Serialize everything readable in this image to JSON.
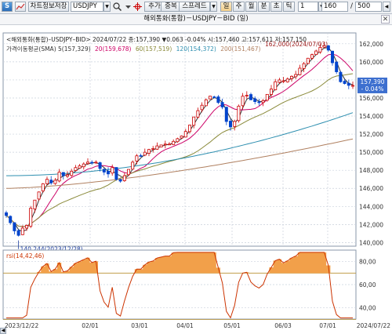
{
  "toolbar": {
    "logo_label": "S",
    "save_chart_label": "차트정보저장",
    "symbol_value": "USDJPY",
    "add_label": "추가",
    "overlay_label": "중복",
    "spread_label": "스프레드",
    "period_day": "일",
    "period_week": "주",
    "period_month": "월",
    "period_minute": "분",
    "period_tick": "초",
    "period_tick2": "틱",
    "multiplier_value": "1",
    "count_value": "160",
    "slash": "/",
    "total_value": "500"
  },
  "header": {
    "title": "해외통화(통합)－USDJPY－BID (일)"
  },
  "price_panel": {
    "info_line": "<해외통화(통합)–USDJPY–BID> 2024/07/22 종:157,390 ▼0.063 -0.04% 시:157,460 고:157,611 저:157,150",
    "ma_line_label": "가격이동평균(SMA) 5(157,329)",
    "ma_items": [
      {
        "text": "20(159,678)",
        "color": "#cc0066"
      },
      {
        "text": "60(157,519)",
        "color": "#8a8a3a"
      },
      {
        "text": "120(154,372)",
        "color": "#2e8fb0"
      },
      {
        "text": "200(151,467)",
        "color": "#b08060"
      }
    ],
    "high_annotation": "162,000(2024/07/03)",
    "low_annotation": "140,244(2023/12/28)",
    "last_price": "157,390",
    "last_change": "- 0.04%"
  },
  "rsi_panel": {
    "label": "rsi(14,42,46)"
  },
  "colors": {
    "up": "#cc0000",
    "down": "#0044cc",
    "ma5": "#333333",
    "ma20": "#cc0066",
    "ma60": "#8a8a3a",
    "ma120": "#2e8fb0",
    "ma200": "#b08060",
    "rsi": "#cc3300",
    "rsi_fill": "#f2a04a"
  },
  "chart_data": {
    "type": "candlestick",
    "price_axis": {
      "min": 140,
      "max": 162,
      "ticks": [
        140,
        142,
        144,
        146,
        148,
        150,
        152,
        154,
        156,
        158,
        160,
        162
      ]
    },
    "rsi_axis": {
      "min": 30,
      "max": 80,
      "ticks": [
        40,
        60,
        80
      ],
      "overbought": 70,
      "oversold": 30
    },
    "x_tick_labels": [
      "2023/12/22",
      "02/01",
      "03/01",
      "04/01",
      "05/01",
      "06/03",
      "07/01",
      "2024/07/22"
    ],
    "close_path": [
      143.0,
      142.2,
      141.3,
      140.8,
      141.6,
      141.9,
      143.8,
      144.7,
      145.6,
      146.5,
      147.0,
      146.6,
      146.9,
      147.8,
      147.4,
      147.5,
      147.9,
      148.3,
      148.5,
      148.7,
      148.9,
      148.8,
      148.9,
      148.2,
      147.8,
      147.6,
      148.3,
      147.0,
      146.8,
      147.4,
      148.1,
      148.9,
      149.6,
      149.6,
      150.0,
      150.3,
      150.4,
      150.7,
      150.8,
      150.9,
      150.9,
      151.2,
      151.5,
      151.8,
      152.3,
      153.0,
      153.9,
      154.6,
      155.2,
      155.8,
      156.2,
      156.1,
      155.5,
      155.0,
      153.4,
      152.8,
      153.4,
      155.1,
      156.2,
      156.3,
      155.8,
      155.6,
      155.5,
      155.7,
      156.4,
      157.0,
      157.8,
      158.0,
      157.9,
      158.1,
      158.4,
      158.6,
      159.3,
      159.8,
      160.4,
      160.8,
      161.2,
      161.6,
      161.8,
      161.3,
      159.9,
      158.9,
      157.8,
      157.6,
      157.4,
      157.39
    ],
    "ma_final_values": {
      "ma5": 157.329,
      "ma20": 159.678,
      "ma60": 157.519,
      "ma120": 154.372,
      "ma200": 151.467
    },
    "annotations": [
      {
        "label": "162,000(2024/07/03)",
        "value": 162.0,
        "date": "2024/07/03"
      },
      {
        "label": "140,244(2023/12/28)",
        "value": 140.244,
        "date": "2023/12/28"
      }
    ],
    "last": {
      "date": "2024/07/22",
      "close": 157.39,
      "open": 157.46,
      "high": 157.611,
      "low": 157.15,
      "change": -0.063,
      "change_pct": -0.04
    }
  }
}
